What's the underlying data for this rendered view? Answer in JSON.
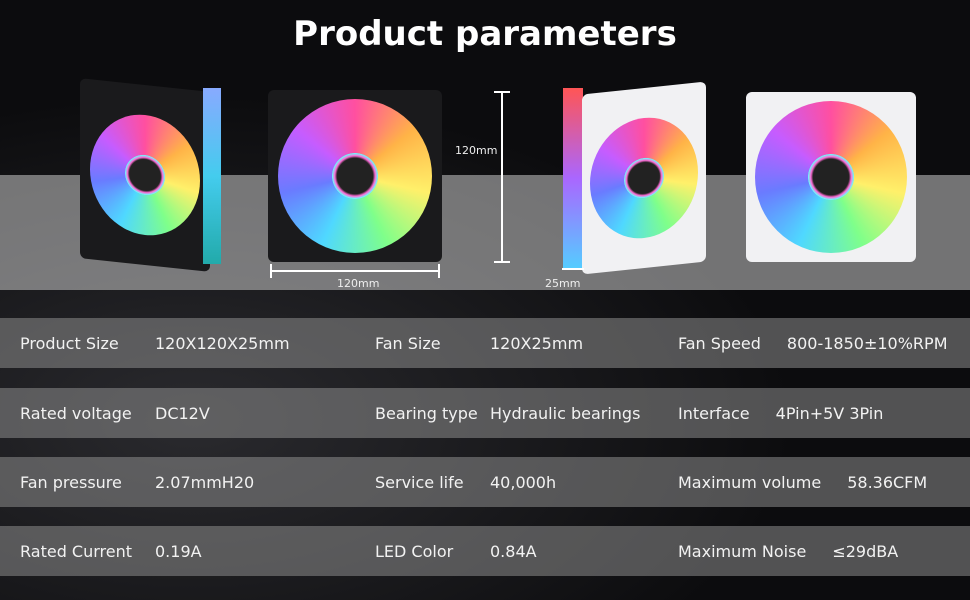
{
  "header": {
    "title": "Product parameters"
  },
  "dimensions": {
    "height": "120mm",
    "width": "120mm",
    "thickness": "25mm"
  },
  "table": {
    "rows": [
      [
        [
          "Product Size",
          "120X120X25mm"
        ],
        [
          "Fan Size",
          "120X25mm"
        ],
        [
          "Fan Speed",
          "800-1850±10%RPM"
        ]
      ],
      [
        [
          "Rated voltage",
          "DC12V"
        ],
        [
          "Bearing type",
          "Hydraulic bearings"
        ],
        [
          "Interface",
          "4Pin+5V 3Pin"
        ]
      ],
      [
        [
          "Fan pressure",
          "2.07mmH20"
        ],
        [
          "Service life",
          "40,000h"
        ],
        [
          "Maximum volume",
          "58.36CFM"
        ]
      ],
      [
        [
          "Rated Current",
          "0.19A"
        ],
        [
          "LED Color",
          "0.84A"
        ],
        [
          "Maximum Noise",
          "≤29dBA"
        ]
      ]
    ]
  }
}
